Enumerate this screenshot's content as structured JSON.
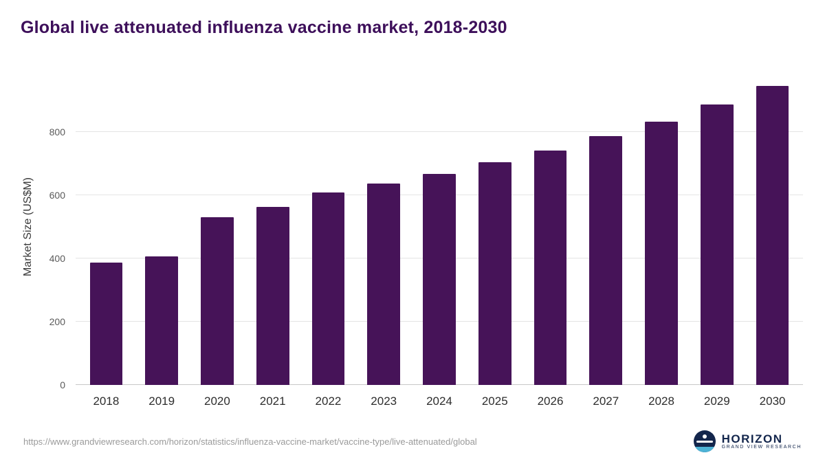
{
  "title": "Global live attenuated influenza vaccine market, 2018-2030",
  "chart_data": {
    "type": "bar",
    "categories": [
      "2018",
      "2019",
      "2020",
      "2021",
      "2022",
      "2023",
      "2024",
      "2025",
      "2026",
      "2027",
      "2028",
      "2029",
      "2030"
    ],
    "values": [
      388,
      407,
      530,
      563,
      608,
      636,
      667,
      704,
      741,
      786,
      832,
      886,
      945
    ],
    "title": "Global live attenuated influenza vaccine market, 2018-2030",
    "xlabel": "",
    "ylabel": "Market Size (US$M)",
    "ylim": [
      0,
      1000
    ],
    "yticks": [
      0,
      200,
      400,
      600,
      800
    ],
    "bar_color": "#461358",
    "grid": "horizontal",
    "legend": "none"
  },
  "footer": {
    "source_url": "https://www.grandviewresearch.com/horizon/statistics/influenza-vaccine-market/vaccine-type/live-attenuated/global",
    "logo": {
      "name": "HORIZON",
      "subtitle": "GRAND VIEW RESEARCH"
    }
  }
}
